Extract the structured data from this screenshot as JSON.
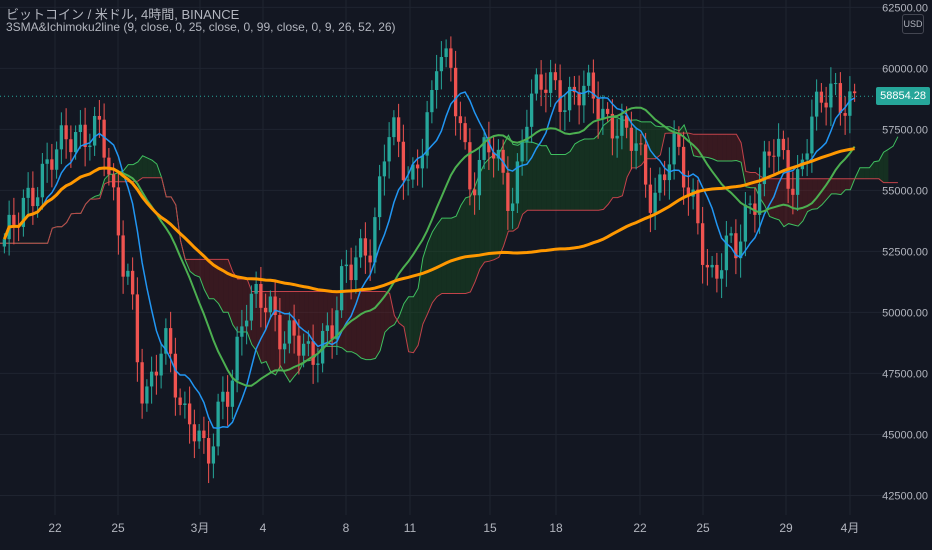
{
  "header": {
    "title": "ビットコイン / 米ドル, 4時間, BINANCE",
    "indicator": "3SMA&Ichimoku2line (9, close, 0, 25, close, 0, 99, close, 0, 9, 26, 52, 26)",
    "currency": "USD"
  },
  "colors": {
    "background": "#131722",
    "grid": "#1f2430",
    "up": "#26a69a",
    "down": "#ef5350",
    "sma_short": "#2196f3",
    "sma_mid": "#4caf50",
    "sma_long": "#ff9800",
    "cloud_bull": "#1b5e20",
    "cloud_bear": "#7f1d1d",
    "text": "#b2b5be"
  },
  "chart_data": {
    "type": "candlestick",
    "title": "ビットコイン / 米ドル, 4時間, BINANCE",
    "x_ticks": [
      "22",
      "25",
      "3月",
      "4",
      "8",
      "11",
      "15",
      "18",
      "22",
      "25",
      "29",
      "4月"
    ],
    "y_ticks": [
      "42500.00",
      "45000.00",
      "47500.00",
      "50000.00",
      "52500.00",
      "55000.00",
      "57500.00",
      "60000.00",
      "62500.00"
    ],
    "ylim": [
      41700,
      62800
    ],
    "last_price": "58854.28",
    "keypoints": [
      [
        0,
        53000
      ],
      [
        5,
        56500
      ],
      [
        9,
        57800
      ],
      [
        12,
        52000
      ],
      [
        14,
        46500
      ],
      [
        16,
        48500
      ],
      [
        18,
        46000
      ],
      [
        20,
        43800
      ],
      [
        22,
        47200
      ],
      [
        24,
        50000
      ],
      [
        26,
        50500
      ],
      [
        28,
        49000
      ],
      [
        30,
        48000
      ],
      [
        32,
        49500
      ],
      [
        34,
        51500
      ],
      [
        36,
        53000
      ],
      [
        38,
        57200
      ],
      [
        40,
        55500
      ],
      [
        42,
        58200
      ],
      [
        43,
        60500
      ],
      [
        44,
        59600
      ],
      [
        45,
        58200
      ],
      [
        46,
        55500
      ],
      [
        48,
        56500
      ],
      [
        50,
        55000
      ],
      [
        52,
        58500
      ],
      [
        54,
        59500
      ],
      [
        56,
        58800
      ],
      [
        58,
        58800
      ],
      [
        60,
        58000
      ],
      [
        62,
        56800
      ],
      [
        64,
        55000
      ],
      [
        66,
        56500
      ],
      [
        68,
        54500
      ],
      [
        70,
        51500
      ],
      [
        72,
        52500
      ],
      [
        74,
        55000
      ],
      [
        76,
        56500
      ],
      [
        78,
        55500
      ],
      [
        80,
        58000
      ],
      [
        82,
        59000
      ],
      [
        84,
        58854
      ]
    ],
    "series": [
      {
        "name": "SMA 9",
        "color": "#2196f3"
      },
      {
        "name": "SMA 25",
        "color": "#4caf50"
      },
      {
        "name": "SMA 99",
        "color": "#ff9800"
      }
    ]
  }
}
